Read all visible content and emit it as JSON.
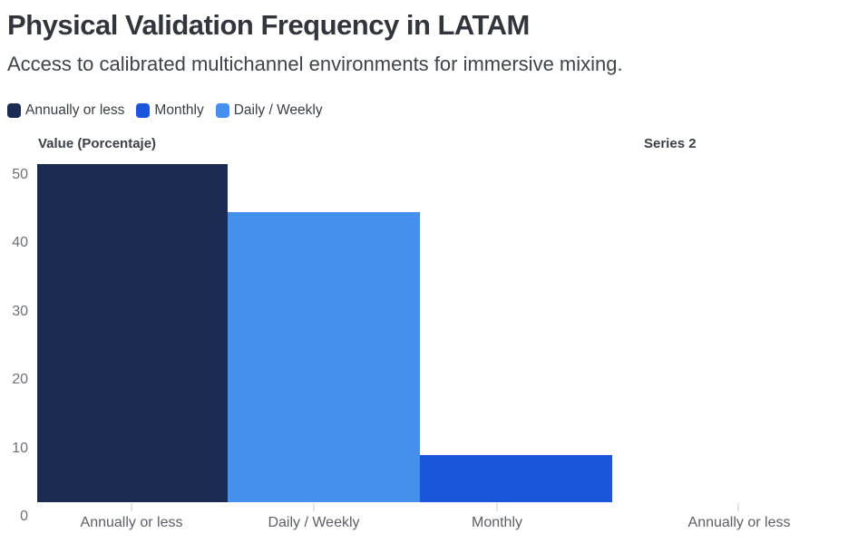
{
  "header": {
    "title": "Physical Validation Frequency in LATAM",
    "subtitle": "Access to calibrated multichannel environments for immersive mixing."
  },
  "legend": [
    {
      "label": "Annually or less",
      "color": "#1b2b52"
    },
    {
      "label": "Monthly",
      "color": "#1a56d8"
    },
    {
      "label": "Daily / Weekly",
      "color": "#4590ec"
    }
  ],
  "chart_data": [
    {
      "type": "bar",
      "panel_title": "Value (Porcentaje)",
      "ylabel": "Value (Porcentaje)",
      "categories": [
        "Annually or less",
        "Daily / Weekly",
        "Monthly"
      ],
      "values": [
        51.5,
        44.5,
        9
      ],
      "bar_colors": [
        "#1b2b52",
        "#4590ec",
        "#1a56d8"
      ],
      "series_of_each_bar": [
        "Annually or less",
        "Daily / Weekly",
        "Monthly"
      ],
      "yticks": [
        0,
        10,
        20,
        30,
        40,
        50
      ],
      "ylim": [
        0,
        52
      ],
      "grid": false,
      "legend_position": "top-left"
    },
    {
      "type": "bar",
      "panel_title": "Series 2",
      "categories": [
        "Annually or less"
      ],
      "values": [
        0
      ],
      "bar_colors": [
        "#1b2b52"
      ],
      "yticks": [],
      "grid": false
    }
  ]
}
